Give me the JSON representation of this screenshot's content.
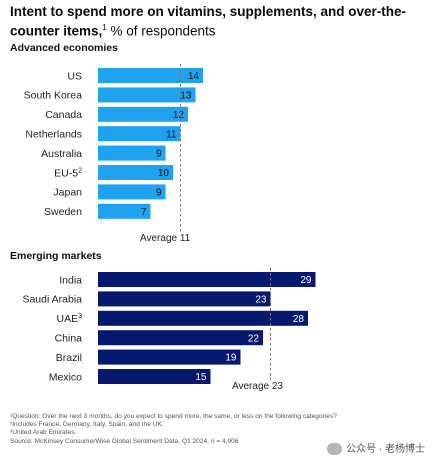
{
  "header": {
    "title_bold": "Intent to spend more on vitamins, supplements, and over-the-counter items,",
    "title_sup": "1",
    "title_rest": " % of respondents"
  },
  "chart_data": [
    {
      "type": "bar",
      "orientation": "horizontal",
      "title": "Advanced economies",
      "categories": [
        "US",
        "South Korea",
        "Canada",
        "Netherlands",
        "Australia",
        "EU-5",
        "Japan",
        "Sweden"
      ],
      "category_sups": [
        "",
        "",
        "",
        "",
        "",
        "2",
        "",
        ""
      ],
      "values": [
        14,
        13,
        12,
        11,
        9,
        10,
        9,
        7
      ],
      "color": "#1fa3f0",
      "label_color": "#111111",
      "average": 11,
      "average_label": "Average 11"
    },
    {
      "type": "bar",
      "orientation": "horizontal",
      "title": "Emerging markets",
      "categories": [
        "India",
        "Saudi Arabia",
        "UAE",
        "China",
        "Brazil",
        "Mexico"
      ],
      "category_sups": [
        "",
        "",
        "3",
        "",
        "",
        ""
      ],
      "values": [
        29,
        23,
        28,
        22,
        19,
        15
      ],
      "color": "#07186f",
      "label_color": "#ffffff",
      "average": 23,
      "average_label": "Average 23"
    }
  ],
  "footnotes": [
    "¹Question: Over the next 3 months, do you expect to spend more, the same, or less on the following categories?",
    "²Includes France, Germany, Italy, Spain, and the UK.",
    "³United Arab Emirates.",
    "Source: McKinsey ConsumerWise Global Sentiment Data, Q1 2024, n = 4,006"
  ],
  "watermark": {
    "text": "公众号 · 老杨博士",
    "icon": "wechat-icon"
  }
}
